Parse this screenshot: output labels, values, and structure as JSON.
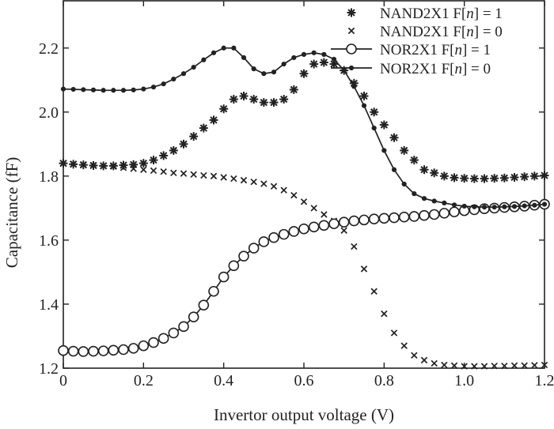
{
  "chart_data": {
    "type": "line",
    "title": "",
    "xlabel": "Invertor output voltage (V)",
    "ylabel": "Capacitance (fF)",
    "xlim": [
      0,
      1.2
    ],
    "ylim": [
      1.2,
      2.35
    ],
    "xticks": [
      0,
      0.2,
      0.4,
      0.6,
      0.8,
      1.0,
      1.2
    ],
    "xtick_labels": [
      "0",
      "0.2",
      "0.4",
      "0.6",
      "0.8",
      "1.0",
      "1.2"
    ],
    "yticks": [
      1.2,
      1.4,
      1.6,
      1.8,
      2.0,
      2.2
    ],
    "ytick_labels": [
      "1.2",
      "1.4",
      "1.6",
      "1.8",
      "2.0",
      "2.2"
    ],
    "grid": false,
    "legend_position": "top-right",
    "colors": {
      "series": "#222222",
      "axes": "#222222",
      "background": "#ffffff"
    },
    "series": [
      {
        "name": "NAND2X1 F[n] = 1",
        "name_parts": [
          "NAND2X1 F[",
          "n",
          "] = 1"
        ],
        "style": "markers",
        "marker": "asterisk",
        "x": [
          0,
          0.025,
          0.05,
          0.075,
          0.1,
          0.125,
          0.15,
          0.175,
          0.2,
          0.225,
          0.25,
          0.275,
          0.3,
          0.325,
          0.35,
          0.375,
          0.4,
          0.425,
          0.45,
          0.475,
          0.5,
          0.525,
          0.55,
          0.575,
          0.6,
          0.625,
          0.65,
          0.675,
          0.7,
          0.725,
          0.75,
          0.775,
          0.8,
          0.825,
          0.85,
          0.875,
          0.9,
          0.925,
          0.95,
          0.975,
          1.0,
          1.025,
          1.05,
          1.075,
          1.1,
          1.125,
          1.15,
          1.175,
          1.2
        ],
        "y": [
          1.84,
          1.837,
          1.835,
          1.833,
          1.832,
          1.832,
          1.834,
          1.836,
          1.84,
          1.85,
          1.864,
          1.88,
          1.9,
          1.924,
          1.95,
          1.975,
          2.01,
          2.04,
          2.05,
          2.04,
          2.03,
          2.03,
          2.04,
          2.07,
          2.12,
          2.15,
          2.155,
          2.15,
          2.13,
          2.09,
          2.05,
          2.0,
          1.96,
          1.92,
          1.88,
          1.85,
          1.82,
          1.81,
          1.8,
          1.795,
          1.793,
          1.792,
          1.792,
          1.793,
          1.794,
          1.796,
          1.798,
          1.8,
          1.802
        ]
      },
      {
        "name": "NAND2X1 F[n] = 0",
        "name_parts": [
          "NAND2X1 F[",
          "n",
          "] = 0"
        ],
        "style": "markers",
        "marker": "x",
        "x": [
          0,
          0.025,
          0.05,
          0.075,
          0.1,
          0.125,
          0.15,
          0.175,
          0.2,
          0.225,
          0.25,
          0.275,
          0.3,
          0.325,
          0.35,
          0.375,
          0.4,
          0.425,
          0.45,
          0.475,
          0.5,
          0.525,
          0.55,
          0.575,
          0.6,
          0.625,
          0.65,
          0.675,
          0.7,
          0.725,
          0.75,
          0.775,
          0.8,
          0.825,
          0.85,
          0.875,
          0.9,
          0.925,
          0.95,
          0.975,
          1.0,
          1.025,
          1.05,
          1.075,
          1.1,
          1.125,
          1.15,
          1.175,
          1.2
        ],
        "y": [
          1.84,
          1.838,
          1.836,
          1.834,
          1.832,
          1.83,
          1.826,
          1.823,
          1.82,
          1.817,
          1.814,
          1.81,
          1.808,
          1.805,
          1.802,
          1.8,
          1.796,
          1.792,
          1.787,
          1.782,
          1.776,
          1.768,
          1.756,
          1.74,
          1.72,
          1.7,
          1.68,
          1.66,
          1.63,
          1.58,
          1.51,
          1.44,
          1.37,
          1.31,
          1.27,
          1.24,
          1.225,
          1.215,
          1.21,
          1.208,
          1.206,
          1.206,
          1.206,
          1.207,
          1.207,
          1.208,
          1.208,
          1.209,
          1.21
        ]
      },
      {
        "name": "NOR2X1 F[n] = 1",
        "name_parts": [
          "NOR2X1 F[",
          "n",
          "] = 1"
        ],
        "style": "line-markers",
        "marker": "open-circle",
        "x": [
          0,
          0.025,
          0.05,
          0.075,
          0.1,
          0.125,
          0.15,
          0.175,
          0.2,
          0.225,
          0.25,
          0.275,
          0.3,
          0.325,
          0.35,
          0.375,
          0.4,
          0.425,
          0.45,
          0.475,
          0.5,
          0.525,
          0.55,
          0.575,
          0.6,
          0.625,
          0.65,
          0.675,
          0.7,
          0.725,
          0.75,
          0.775,
          0.8,
          0.825,
          0.85,
          0.875,
          0.9,
          0.925,
          0.95,
          0.975,
          1.0,
          1.025,
          1.05,
          1.075,
          1.1,
          1.125,
          1.15,
          1.175,
          1.2
        ],
        "y": [
          1.255,
          1.253,
          1.252,
          1.253,
          1.254,
          1.256,
          1.258,
          1.262,
          1.27,
          1.28,
          1.293,
          1.31,
          1.33,
          1.36,
          1.397,
          1.44,
          1.485,
          1.52,
          1.55,
          1.575,
          1.595,
          1.608,
          1.618,
          1.627,
          1.635,
          1.641,
          1.646,
          1.651,
          1.656,
          1.66,
          1.663,
          1.666,
          1.668,
          1.67,
          1.672,
          1.674,
          1.677,
          1.68,
          1.684,
          1.688,
          1.692,
          1.695,
          1.698,
          1.7,
          1.702,
          1.704,
          1.706,
          1.709,
          1.712
        ]
      },
      {
        "name": "NOR2X1 F[n] = 0",
        "name_parts": [
          "NOR2X1 F[",
          "n",
          "] = 0"
        ],
        "style": "line-markers",
        "marker": "filled-dot",
        "x": [
          0,
          0.025,
          0.05,
          0.075,
          0.1,
          0.125,
          0.15,
          0.175,
          0.2,
          0.225,
          0.25,
          0.275,
          0.3,
          0.325,
          0.35,
          0.375,
          0.4,
          0.425,
          0.45,
          0.475,
          0.5,
          0.525,
          0.55,
          0.575,
          0.6,
          0.625,
          0.65,
          0.675,
          0.7,
          0.725,
          0.75,
          0.775,
          0.8,
          0.825,
          0.85,
          0.875,
          0.9,
          0.925,
          0.95,
          0.975,
          1.0,
          1.025,
          1.05,
          1.075,
          1.1,
          1.125,
          1.15,
          1.175,
          1.2
        ],
        "y": [
          2.072,
          2.071,
          2.07,
          2.069,
          2.068,
          2.068,
          2.068,
          2.069,
          2.072,
          2.078,
          2.088,
          2.103,
          2.12,
          2.14,
          2.163,
          2.185,
          2.2,
          2.2,
          2.17,
          2.135,
          2.12,
          2.125,
          2.15,
          2.17,
          2.18,
          2.185,
          2.18,
          2.165,
          2.13,
          2.08,
          2.02,
          1.95,
          1.88,
          1.82,
          1.775,
          1.745,
          1.73,
          1.722,
          1.716,
          1.71,
          1.706,
          1.704,
          1.703,
          1.703,
          1.704,
          1.705,
          1.707,
          1.709,
          1.712
        ]
      }
    ]
  }
}
